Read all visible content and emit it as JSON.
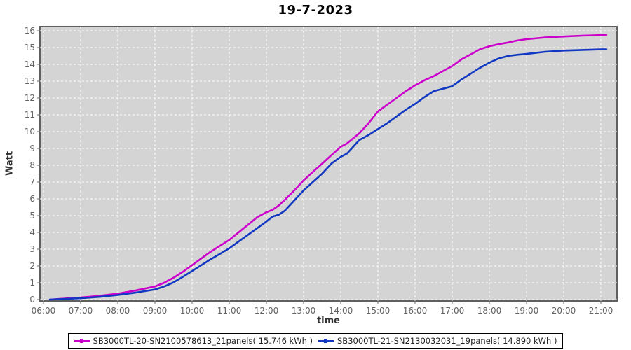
{
  "title": "19-7-2023",
  "chart_data": {
    "type": "line",
    "title": "19-7-2023",
    "xlabel": "time",
    "ylabel": "Watt",
    "legend_position": "bottom",
    "grid": "white dashed gridlines on light gray plot background",
    "plot_bg_color": "#d4d4d4",
    "grid_color": "#ffffff",
    "plot_border_color": "#5f5f5f",
    "tick_label_color": "#616161",
    "x_range_hours": [
      5.906,
      21.434
    ],
    "y_range": [
      -0.083,
      16.25
    ],
    "x_tick_hours": [
      6,
      7,
      8,
      9,
      10,
      11,
      12,
      13,
      14,
      15,
      16,
      17,
      18,
      19,
      20,
      21
    ],
    "x_tick_labels": [
      "06:00",
      "07:00",
      "08:00",
      "09:00",
      "10:00",
      "11:00",
      "12:00",
      "13:00",
      "14:00",
      "15:00",
      "16:00",
      "17:00",
      "18:00",
      "19:00",
      "20:00",
      "21:00"
    ],
    "y_ticks": [
      0,
      1,
      2,
      3,
      4,
      5,
      6,
      7,
      8,
      9,
      10,
      11,
      12,
      13,
      14,
      15,
      16
    ],
    "series": [
      {
        "name": "SB3000TL-20-SN2100578613_21panels( 15.746 kWh )",
        "color": "#cc00cc",
        "total_kwh": "15.746",
        "points": [
          [
            6.17,
            0.0
          ],
          [
            6.5,
            0.05
          ],
          [
            7.0,
            0.12
          ],
          [
            7.5,
            0.22
          ],
          [
            8.0,
            0.35
          ],
          [
            8.5,
            0.55
          ],
          [
            9.0,
            0.78
          ],
          [
            9.25,
            1.0
          ],
          [
            9.5,
            1.3
          ],
          [
            9.75,
            1.65
          ],
          [
            10.0,
            2.05
          ],
          [
            10.25,
            2.45
          ],
          [
            10.5,
            2.85
          ],
          [
            10.75,
            3.2
          ],
          [
            11.0,
            3.55
          ],
          [
            11.25,
            4.0
          ],
          [
            11.5,
            4.45
          ],
          [
            11.75,
            4.9
          ],
          [
            12.0,
            5.2
          ],
          [
            12.17,
            5.35
          ],
          [
            12.33,
            5.6
          ],
          [
            12.5,
            5.95
          ],
          [
            12.75,
            6.5
          ],
          [
            13.0,
            7.1
          ],
          [
            13.25,
            7.6
          ],
          [
            13.5,
            8.1
          ],
          [
            13.75,
            8.6
          ],
          [
            14.0,
            9.1
          ],
          [
            14.17,
            9.3
          ],
          [
            14.5,
            9.9
          ],
          [
            14.75,
            10.5
          ],
          [
            15.0,
            11.2
          ],
          [
            15.25,
            11.6
          ],
          [
            15.5,
            12.0
          ],
          [
            15.75,
            12.4
          ],
          [
            16.0,
            12.75
          ],
          [
            16.25,
            13.05
          ],
          [
            16.5,
            13.3
          ],
          [
            16.75,
            13.6
          ],
          [
            17.0,
            13.9
          ],
          [
            17.25,
            14.3
          ],
          [
            17.5,
            14.6
          ],
          [
            17.75,
            14.9
          ],
          [
            18.0,
            15.08
          ],
          [
            18.25,
            15.2
          ],
          [
            18.5,
            15.3
          ],
          [
            18.75,
            15.42
          ],
          [
            19.0,
            15.5
          ],
          [
            19.5,
            15.6
          ],
          [
            20.0,
            15.66
          ],
          [
            20.5,
            15.71
          ],
          [
            21.0,
            15.74
          ],
          [
            21.15,
            15.75
          ]
        ]
      },
      {
        "name": "SB3000TL-21-SN2130032031_19panels( 14.890 kWh )",
        "color": "#1138c2",
        "total_kwh": "14.890",
        "points": [
          [
            6.17,
            0.0
          ],
          [
            6.5,
            0.03
          ],
          [
            7.0,
            0.08
          ],
          [
            7.5,
            0.16
          ],
          [
            8.0,
            0.27
          ],
          [
            8.5,
            0.42
          ],
          [
            9.0,
            0.6
          ],
          [
            9.25,
            0.78
          ],
          [
            9.5,
            1.02
          ],
          [
            9.75,
            1.35
          ],
          [
            10.0,
            1.7
          ],
          [
            10.25,
            2.05
          ],
          [
            10.5,
            2.4
          ],
          [
            10.75,
            2.72
          ],
          [
            11.0,
            3.05
          ],
          [
            11.25,
            3.45
          ],
          [
            11.5,
            3.85
          ],
          [
            11.75,
            4.25
          ],
          [
            12.0,
            4.65
          ],
          [
            12.17,
            4.95
          ],
          [
            12.33,
            5.05
          ],
          [
            12.5,
            5.3
          ],
          [
            12.75,
            5.9
          ],
          [
            13.0,
            6.5
          ],
          [
            13.25,
            7.0
          ],
          [
            13.5,
            7.5
          ],
          [
            13.75,
            8.1
          ],
          [
            14.0,
            8.5
          ],
          [
            14.17,
            8.7
          ],
          [
            14.5,
            9.5
          ],
          [
            14.75,
            9.8
          ],
          [
            15.0,
            10.15
          ],
          [
            15.25,
            10.5
          ],
          [
            15.5,
            10.9
          ],
          [
            15.75,
            11.3
          ],
          [
            16.0,
            11.65
          ],
          [
            16.25,
            12.05
          ],
          [
            16.5,
            12.4
          ],
          [
            16.75,
            12.55
          ],
          [
            17.0,
            12.7
          ],
          [
            17.25,
            13.1
          ],
          [
            17.5,
            13.45
          ],
          [
            17.75,
            13.8
          ],
          [
            18.0,
            14.1
          ],
          [
            18.25,
            14.35
          ],
          [
            18.5,
            14.5
          ],
          [
            18.75,
            14.57
          ],
          [
            19.0,
            14.62
          ],
          [
            19.5,
            14.75
          ],
          [
            20.0,
            14.82
          ],
          [
            20.5,
            14.86
          ],
          [
            21.0,
            14.89
          ],
          [
            21.15,
            14.89
          ]
        ]
      }
    ]
  }
}
